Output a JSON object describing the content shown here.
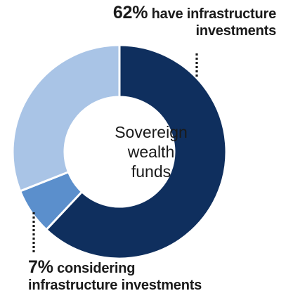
{
  "chart_data": {
    "type": "pie",
    "donut": true,
    "center_label": [
      "Sovereign",
      "wealth",
      "funds"
    ],
    "slices": [
      {
        "value": 62,
        "color": "#0f2f5e"
      },
      {
        "value": 7,
        "color": "#5b8fcc"
      },
      {
        "value": 31,
        "color": "#a9c4e6"
      }
    ],
    "annotations": [
      {
        "pct": "62%",
        "text_line1": "have infrastructure",
        "text_line2": "investments"
      },
      {
        "pct": "7%",
        "text_line1": "considering",
        "text_line2": "infrastructure investments"
      }
    ],
    "leader_color": "#1a1a1a"
  }
}
